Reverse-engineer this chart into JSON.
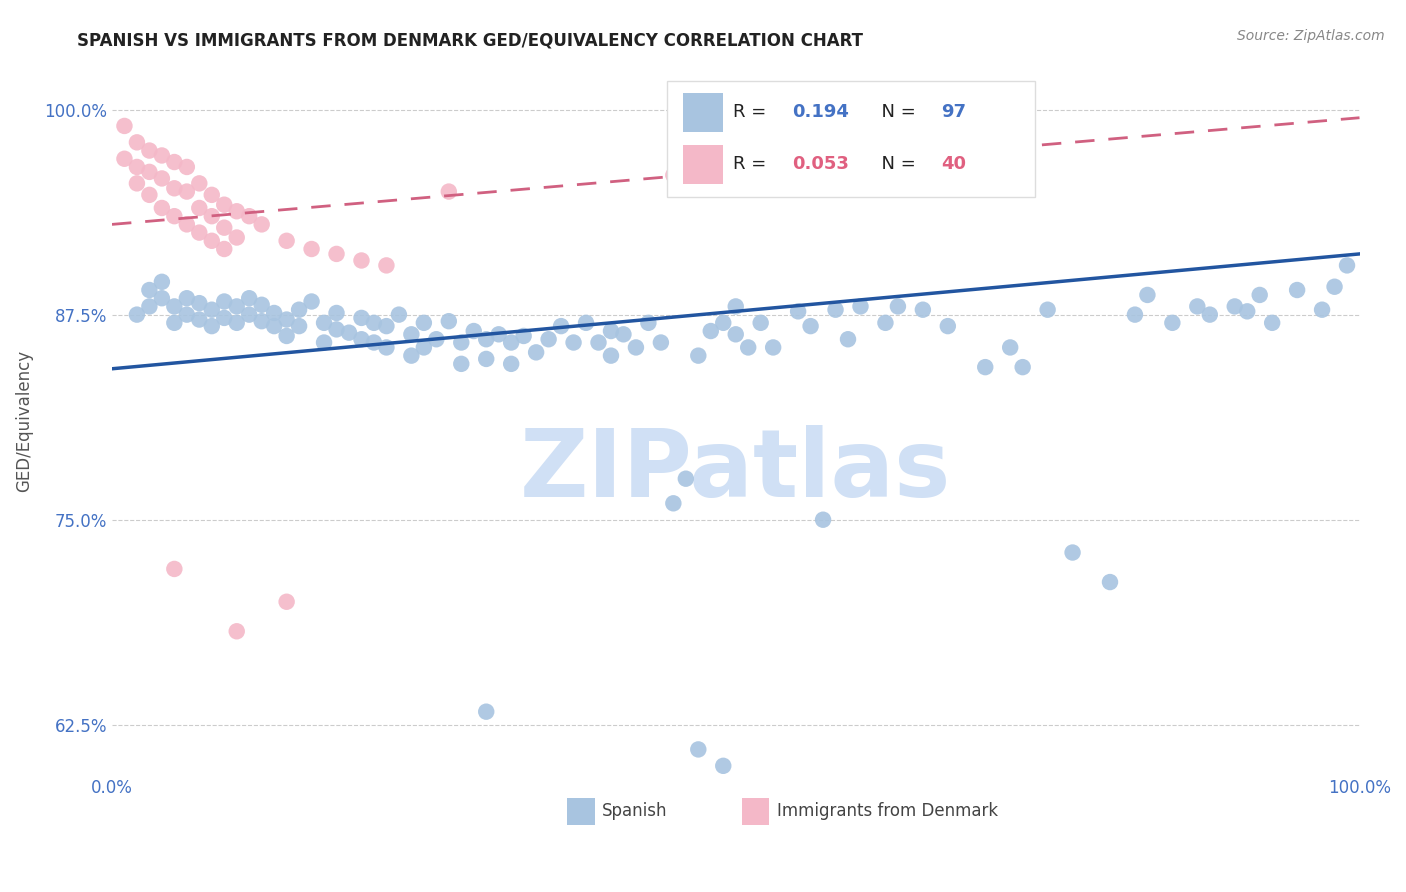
{
  "title": "SPANISH VS IMMIGRANTS FROM DENMARK GED/EQUIVALENCY CORRELATION CHART",
  "source": "Source: ZipAtlas.com",
  "ylabel": "GED/Equivalency",
  "xlim": [
    0.0,
    1.0
  ],
  "ylim": [
    0.595,
    1.025
  ],
  "yticks": [
    0.625,
    0.75,
    0.875,
    1.0
  ],
  "ytick_labels": [
    "62.5%",
    "75.0%",
    "87.5%",
    "100.0%"
  ],
  "xticks": [
    0.0,
    0.125,
    0.25,
    0.375,
    0.5,
    0.625,
    0.75,
    0.875,
    1.0
  ],
  "xtick_labels": [
    "0.0%",
    "",
    "",
    "",
    "",
    "",
    "",
    "",
    "100.0%"
  ],
  "spanish_R": 0.194,
  "spanish_N": 97,
  "denmark_R": 0.053,
  "denmark_N": 40,
  "spanish_color": "#a8c4e0",
  "denmark_color": "#f4b8c8",
  "spanish_line_color": "#2255a0",
  "denmark_line_color": "#d06080",
  "watermark": "ZIPatlas",
  "watermark_color": "#d0e0f5",
  "background_color": "#ffffff",
  "spanish_line_start_y": 0.842,
  "spanish_line_end_y": 0.912,
  "denmark_line_start_y": 0.93,
  "denmark_line_end_y": 0.995
}
